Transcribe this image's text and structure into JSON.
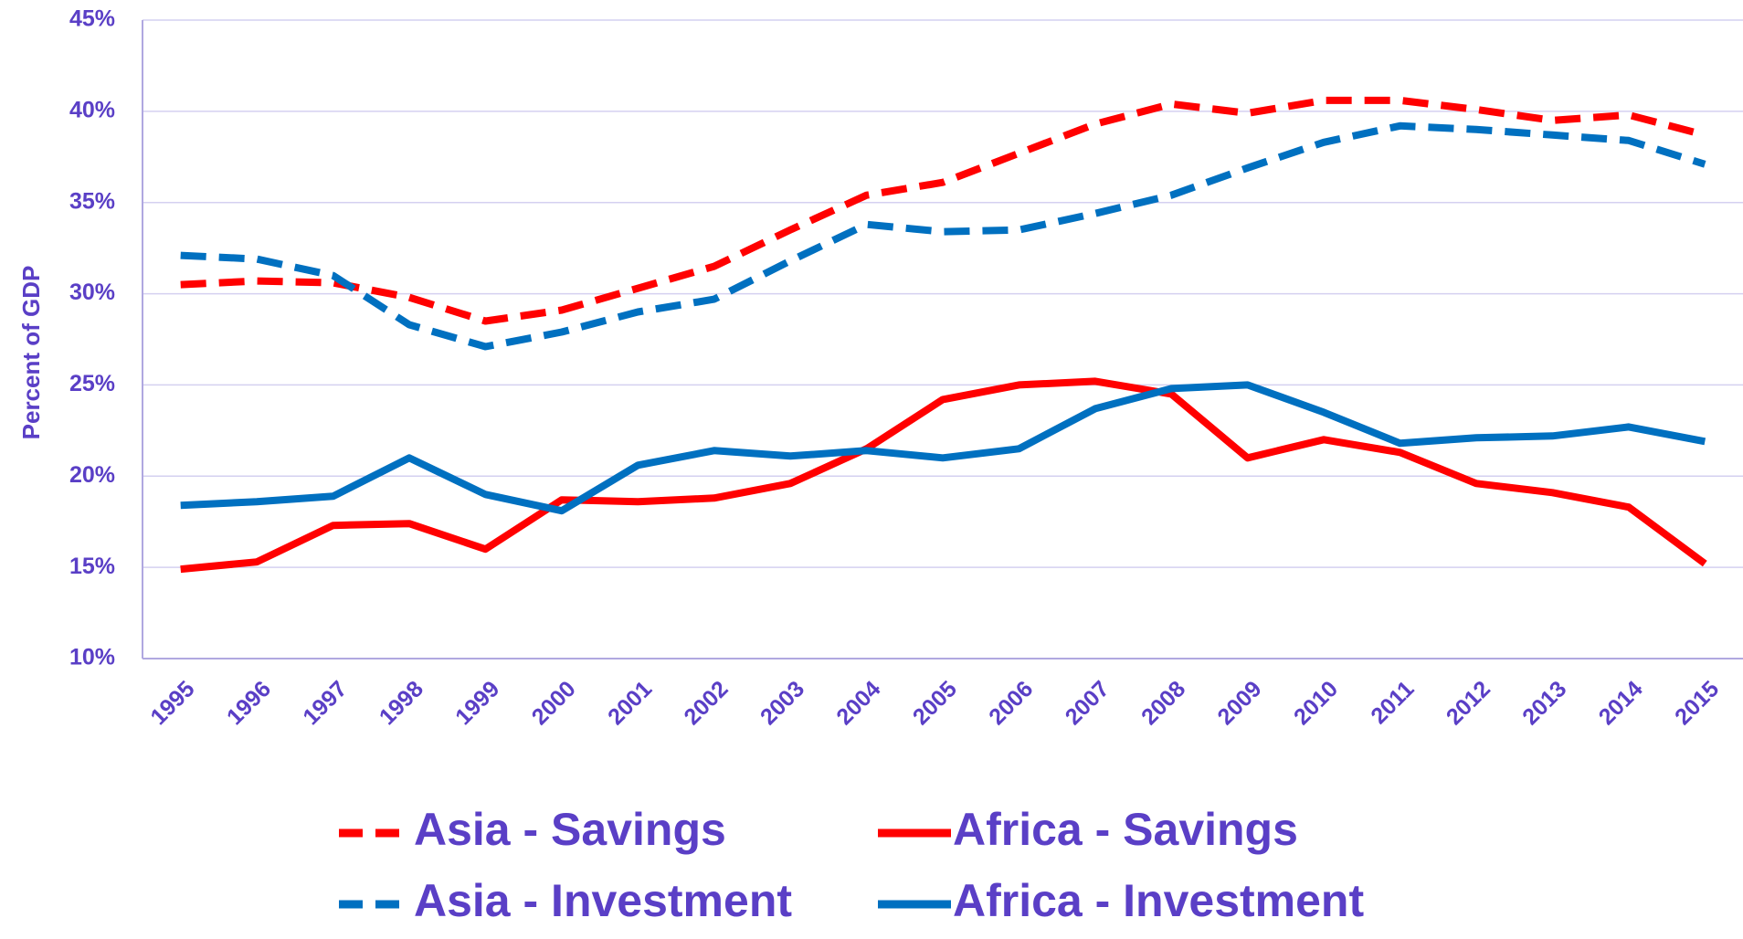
{
  "chart_data": {
    "type": "line",
    "y_label": "Percent of GDP",
    "categories": [
      "1995",
      "1996",
      "1997",
      "1998",
      "1999",
      "2000",
      "2001",
      "2002",
      "2003",
      "2004",
      "2005",
      "2006",
      "2007",
      "2008",
      "2009",
      "2010",
      "2011",
      "2012",
      "2013",
      "2014",
      "2015"
    ],
    "series": [
      {
        "name": "Asia - Savings",
        "color": "#ff0000",
        "dashed": true,
        "values": [
          30.5,
          30.7,
          30.6,
          29.8,
          28.5,
          29.1,
          30.3,
          31.5,
          33.5,
          35.4,
          36.1,
          37.7,
          39.3,
          40.4,
          39.9,
          40.6,
          40.6,
          40.1,
          39.5,
          39.8,
          38.7
        ]
      },
      {
        "name": "Africa - Savings",
        "color": "#ff0000",
        "dashed": false,
        "values": [
          14.9,
          15.3,
          17.3,
          17.4,
          16.0,
          18.7,
          18.6,
          18.8,
          19.6,
          21.5,
          24.2,
          25.0,
          25.2,
          24.5,
          21.0,
          22.0,
          21.3,
          19.6,
          19.1,
          18.3,
          15.2
        ]
      },
      {
        "name": "Asia - Investment",
        "color": "#0070c0",
        "dashed": true,
        "values": [
          32.1,
          31.9,
          31.0,
          28.3,
          27.1,
          27.9,
          29.0,
          29.7,
          31.8,
          33.8,
          33.4,
          33.5,
          34.4,
          35.4,
          36.9,
          38.3,
          39.2,
          39.0,
          38.7,
          38.4,
          37.1
        ]
      },
      {
        "name": "Africa - Investment",
        "color": "#0070c0",
        "dashed": false,
        "values": [
          18.4,
          18.6,
          18.9,
          21.0,
          19.0,
          18.1,
          20.6,
          21.4,
          21.1,
          21.4,
          21.0,
          21.5,
          23.7,
          24.8,
          25.0,
          23.5,
          21.8,
          22.1,
          22.2,
          22.7,
          21.9
        ]
      }
    ],
    "ylim": [
      10,
      45
    ],
    "yticks": [
      {
        "value": 10,
        "label": "10%"
      },
      {
        "value": 15,
        "label": "15%"
      },
      {
        "value": 20,
        "label": "20%"
      },
      {
        "value": 25,
        "label": "25%"
      },
      {
        "value": 30,
        "label": "30%"
      },
      {
        "value": 35,
        "label": "35%"
      },
      {
        "value": 40,
        "label": "40%"
      },
      {
        "value": 45,
        "label": "45%"
      }
    ],
    "grid": true,
    "legend": "bottom"
  }
}
